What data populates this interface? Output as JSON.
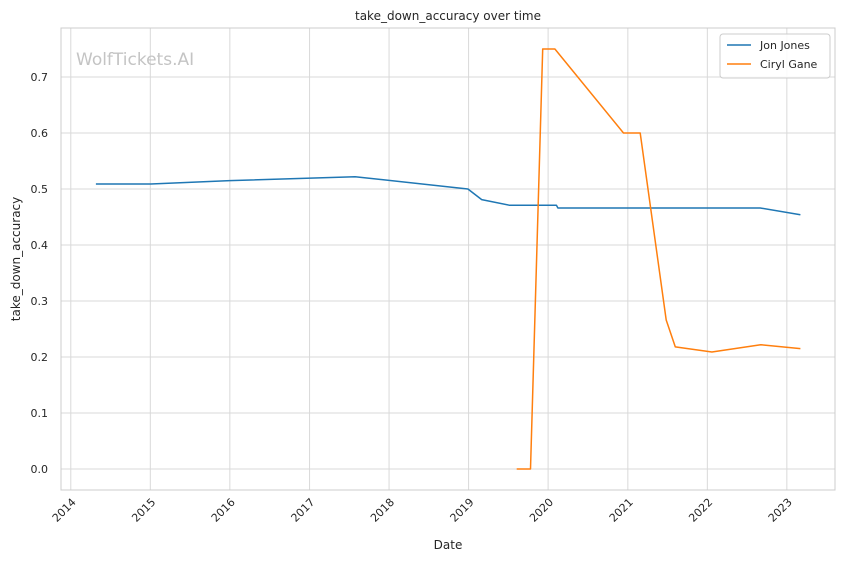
{
  "watermark": "WolfTickets.AI",
  "chart_data": {
    "type": "line",
    "title": "take_down_accuracy over time",
    "xlabel": "Date",
    "ylabel": "take_down_accuracy",
    "x_is_date": true,
    "xlim": [
      "2013-11-17",
      "2023-08-10"
    ],
    "ylim": [
      -0.0375,
      0.7875
    ],
    "x_ticks": [
      "2014",
      "2015",
      "2016",
      "2017",
      "2018",
      "2019",
      "2020",
      "2021",
      "2022",
      "2023"
    ],
    "y_ticks": [
      "0.0",
      "0.1",
      "0.2",
      "0.3",
      "0.4",
      "0.5",
      "0.6",
      "0.7"
    ],
    "grid": true,
    "legend_position": "top-right",
    "series": [
      {
        "name": "Jon Jones",
        "color": "#1f77b4",
        "points": [
          [
            "2014-04-26",
            0.509
          ],
          [
            "2015-01-03",
            0.509
          ],
          [
            "2016-01-01",
            0.515
          ],
          [
            "2017-07-29",
            0.522
          ],
          [
            "2018-12-29",
            0.5
          ],
          [
            "2019-03-02",
            0.481
          ],
          [
            "2019-07-06",
            0.471
          ],
          [
            "2020-02-08",
            0.471
          ],
          [
            "2020-02-15",
            0.466
          ],
          [
            "2022-09-01",
            0.466
          ],
          [
            "2023-03-04",
            0.454
          ]
        ]
      },
      {
        "name": "Ciryl Gane",
        "color": "#ff7f0e",
        "points": [
          [
            "2019-08-10",
            0.0
          ],
          [
            "2019-10-12",
            0.0
          ],
          [
            "2019-12-07",
            0.75
          ],
          [
            "2020-02-01",
            0.75
          ],
          [
            "2020-12-12",
            0.6
          ],
          [
            "2021-02-27",
            0.6
          ],
          [
            "2021-06-26",
            0.266
          ],
          [
            "2021-08-07",
            0.218
          ],
          [
            "2022-01-22",
            0.209
          ],
          [
            "2022-09-03",
            0.222
          ],
          [
            "2023-03-04",
            0.215
          ]
        ]
      }
    ]
  }
}
